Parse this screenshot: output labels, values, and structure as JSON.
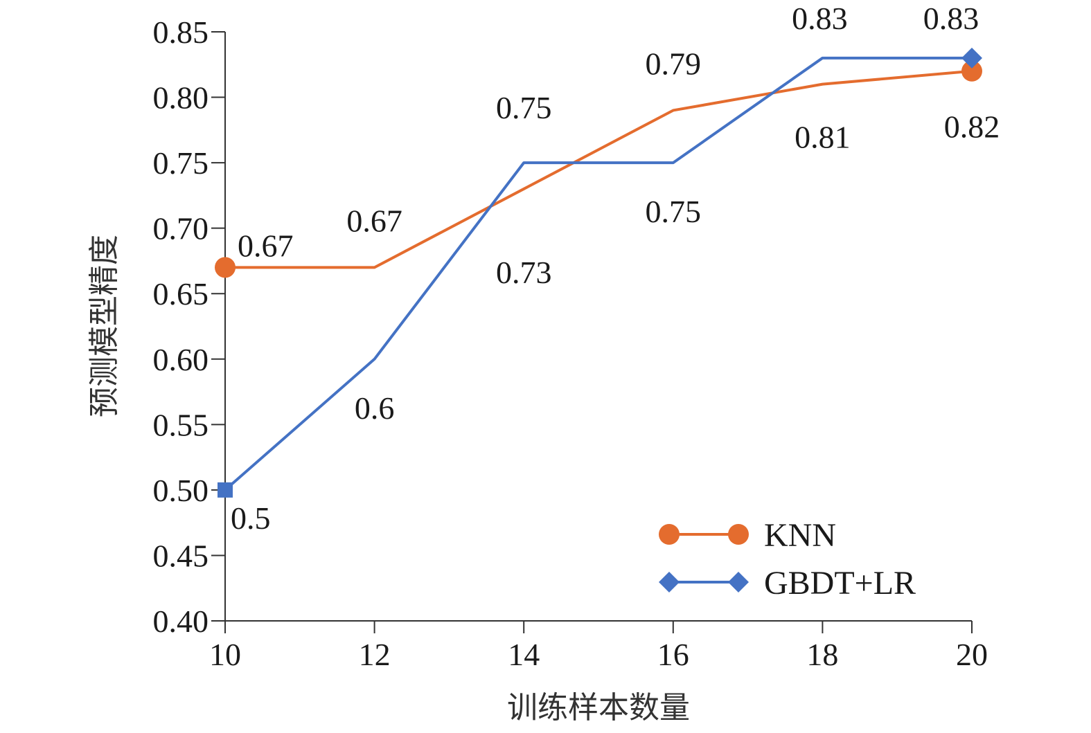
{
  "chart_data": {
    "type": "line",
    "x": [
      10,
      12,
      14,
      16,
      18,
      20
    ],
    "xlim": [
      10,
      20
    ],
    "ylim": [
      0.4,
      0.85
    ],
    "x_ticks": [
      "10",
      "12",
      "14",
      "16",
      "18",
      "20"
    ],
    "y_ticks": [
      "0.40",
      "0.45",
      "0.50",
      "0.55",
      "0.60",
      "0.65",
      "0.70",
      "0.75",
      "0.80",
      "0.85"
    ],
    "xlabel": "训练样本数量",
    "ylabel": "预测模型精度",
    "grid": false,
    "legend_position": "bottom-right",
    "series": [
      {
        "name": "KNN",
        "color": "#E46C2E",
        "marker": "circle",
        "marker_shown_at": [
          "first",
          "last"
        ],
        "values": [
          0.67,
          0.67,
          0.73,
          0.79,
          0.81,
          0.82
        ],
        "data_labels": [
          "0.67",
          "0.67",
          "0.73",
          "0.79",
          "0.81",
          "0.82"
        ]
      },
      {
        "name": "GBDT+LR",
        "color": "#4472C4",
        "marker": "diamond",
        "marker_shown_at": [
          "first",
          "last"
        ],
        "values": [
          0.5,
          0.6,
          0.75,
          0.75,
          0.83,
          0.83
        ],
        "data_labels": [
          "0.5",
          "0.6",
          "0.75",
          "0.75",
          "0.83",
          "0.83"
        ]
      }
    ]
  }
}
